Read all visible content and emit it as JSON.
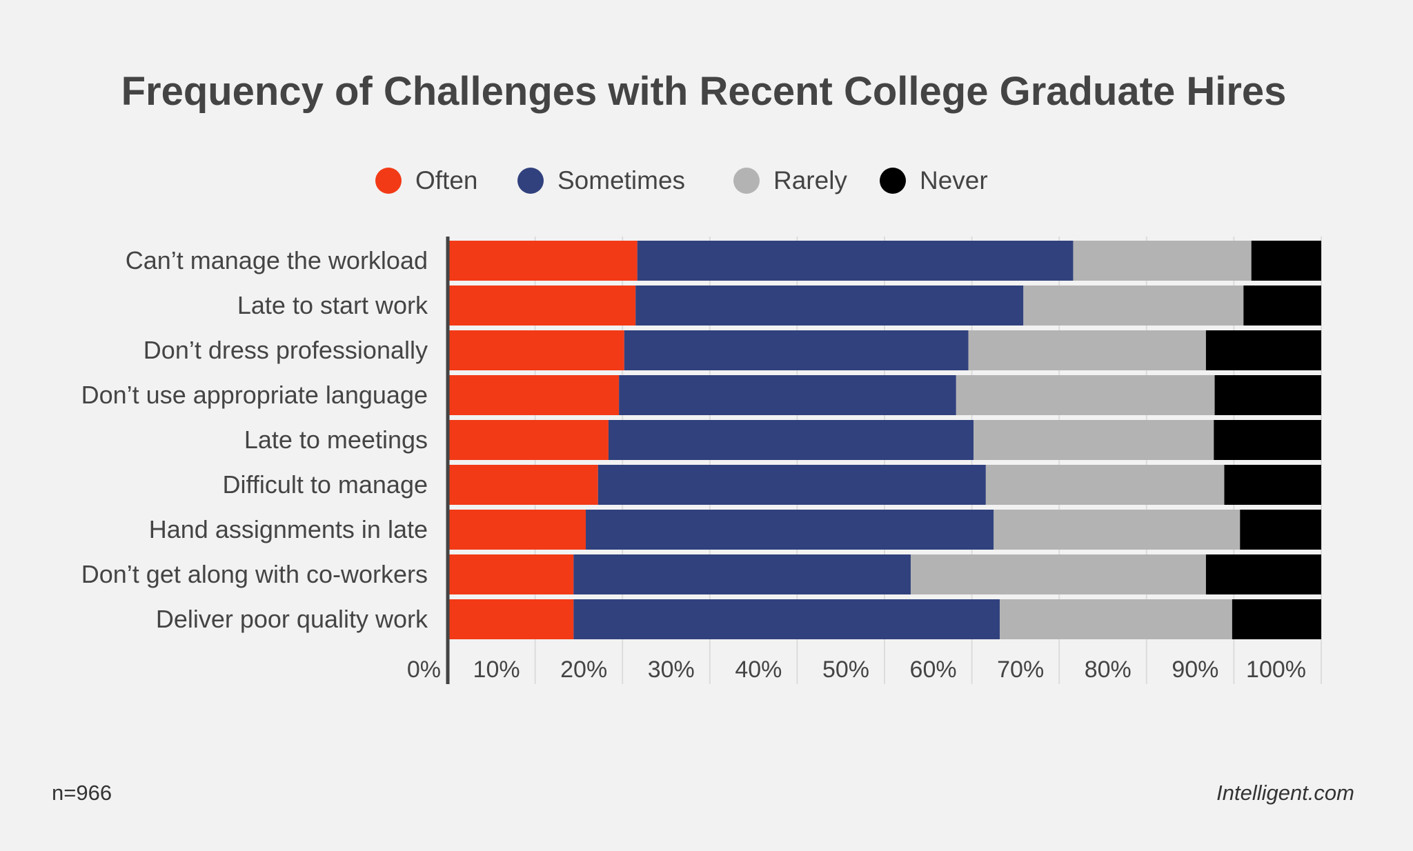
{
  "chart_data": {
    "type": "bar",
    "orientation": "horizontal",
    "stacked": true,
    "title": "Frequency of Challenges with Recent College Graduate Hires",
    "categories": [
      "Can’t manage the workload",
      "Late to start work",
      "Don’t dress professionally",
      "Don’t use appropriate language",
      "Late to meetings",
      "Difficult to manage",
      "Hand assignments in late",
      "Don’t get along with co-workers",
      "Deliver poor quality work"
    ],
    "series": [
      {
        "name": "Often",
        "color": "#f23a16",
        "values": [
          21.7,
          21.5,
          20.2,
          19.6,
          18.4,
          17.2,
          15.8,
          14.4,
          14.4
        ]
      },
      {
        "name": "Sometimes",
        "color": "#31417e",
        "values": [
          49.9,
          44.4,
          39.4,
          38.6,
          41.8,
          44.4,
          46.7,
          38.6,
          48.8
        ]
      },
      {
        "name": "Rarely",
        "color": "#b3b3b3",
        "values": [
          20.4,
          25.2,
          27.2,
          29.6,
          27.5,
          27.3,
          28.2,
          33.8,
          26.6
        ]
      },
      {
        "name": "Never",
        "color": "#000000",
        "values": [
          8.0,
          8.9,
          13.2,
          12.2,
          12.3,
          11.1,
          9.3,
          13.2,
          10.2
        ]
      }
    ],
    "xlim": [
      0,
      100
    ],
    "xticks": [
      "0%",
      "10%",
      "20%",
      "30%",
      "40%",
      "50%",
      "60%",
      "70%",
      "80%",
      "90%",
      "100%"
    ],
    "grid": true,
    "legend_position": "top"
  },
  "footer": {
    "sample": "n=966",
    "source": "Intelligent.com"
  }
}
